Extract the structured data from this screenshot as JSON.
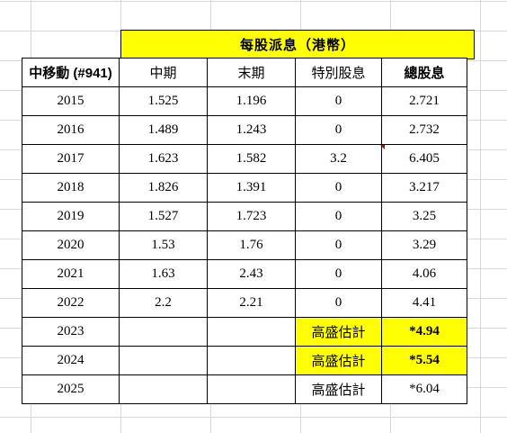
{
  "title": "每股派息（港幣）",
  "headers": [
    "中移動 (#941)",
    "中期",
    "末期",
    "特別股息",
    "總股息"
  ],
  "rows": [
    {
      "year": "2015",
      "interim": "1.525",
      "final": "1.196",
      "special": "0",
      "total": "2.721"
    },
    {
      "year": "2016",
      "interim": "1.489",
      "final": "1.243",
      "special": "0",
      "total": "2.732"
    },
    {
      "year": "2017",
      "interim": "1.623",
      "final": "1.582",
      "special": "3.2",
      "total": "6.405"
    },
    {
      "year": "2018",
      "interim": "1.826",
      "final": "1.391",
      "special": "0",
      "total": "3.217"
    },
    {
      "year": "2019",
      "interim": "1.527",
      "final": "1.723",
      "special": "0",
      "total": "3.25"
    },
    {
      "year": "2020",
      "interim": "1.53",
      "final": "1.76",
      "special": "0",
      "total": "3.29"
    },
    {
      "year": "2021",
      "interim": "1.63",
      "final": "2.43",
      "special": "0",
      "total": "4.06"
    },
    {
      "year": "2022",
      "interim": "2.2",
      "final": "2.21",
      "special": "0",
      "total": "4.41"
    }
  ],
  "estimates": [
    {
      "year": "2023",
      "interim": "",
      "final": "",
      "special": "高盛估計",
      "total": "*4.94",
      "highlight": true
    },
    {
      "year": "2024",
      "interim": "",
      "final": "",
      "special": "高盛估計",
      "total": "*5.54",
      "highlight": true
    },
    {
      "year": "2025",
      "interim": "",
      "final": "",
      "special": "高盛估計",
      "total": "*6.04",
      "highlight": false
    }
  ],
  "colors": {
    "highlight": "#ffff00",
    "comment_marker": "#c00000",
    "border": "#000000"
  }
}
